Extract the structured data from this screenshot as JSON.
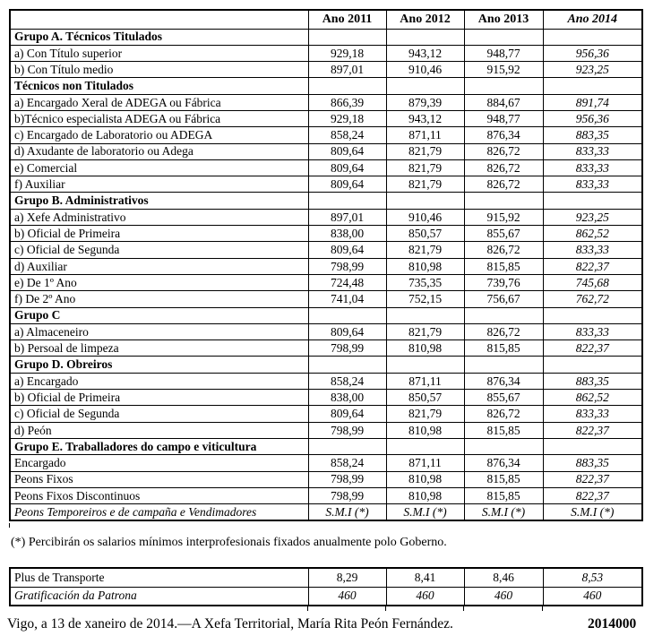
{
  "colors": {
    "text": "#000000",
    "border": "#000000",
    "background": "#ffffff"
  },
  "salary_table": {
    "columns": [
      "",
      "Ano 2011",
      "Ano 2012",
      "Ano 2013",
      "Ano 2014"
    ],
    "rows": [
      {
        "label": "Grupo A. Técnicos Titulados",
        "style": "group",
        "values": [
          "",
          "",
          "",
          ""
        ]
      },
      {
        "label": "a) Con Título superior",
        "style": "normal",
        "values": [
          "929,18",
          "943,12",
          "948,77",
          "956,36"
        ]
      },
      {
        "label": "b) Con Título medio",
        "style": "normal",
        "values": [
          "897,01",
          "910,46",
          "915,92",
          "923,25"
        ]
      },
      {
        "label": "Técnicos non Titulados",
        "style": "group",
        "values": [
          "",
          "",
          "",
          ""
        ]
      },
      {
        "label": "a) Encargado Xeral de ADEGA ou Fábrica",
        "style": "normal",
        "values": [
          "866,39",
          "879,39",
          "884,67",
          "891,74"
        ]
      },
      {
        "label": "b)Técnico especialista ADEGA ou Fábrica",
        "style": "normal",
        "values": [
          "929,18",
          "943,12",
          "948,77",
          "956,36"
        ]
      },
      {
        "label": "c) Encargado de Laboratorio ou ADEGA",
        "style": "normal",
        "values": [
          "858,24",
          "871,11",
          "876,34",
          "883,35"
        ]
      },
      {
        "label": "d) Axudante de laboratorio ou Adega",
        "style": "normal",
        "values": [
          "809,64",
          "821,79",
          "826,72",
          "833,33"
        ]
      },
      {
        "label": "e) Comercial",
        "style": "normal",
        "values": [
          "809,64",
          "821,79",
          "826,72",
          "833,33"
        ]
      },
      {
        "label": "f) Auxiliar",
        "style": "normal",
        "values": [
          "809,64",
          "821,79",
          "826,72",
          "833,33"
        ]
      },
      {
        "label": "Grupo B. Administrativos",
        "style": "group",
        "values": [
          "",
          "",
          "",
          ""
        ]
      },
      {
        "label": "a) Xefe Administrativo",
        "style": "normal",
        "values": [
          "897,01",
          "910,46",
          "915,92",
          "923,25"
        ]
      },
      {
        "label": "b) Oficial de Primeira",
        "style": "normal",
        "values": [
          "838,00",
          "850,57",
          "855,67",
          "862,52"
        ]
      },
      {
        "label": "c) Oficial de Segunda",
        "style": "normal",
        "values": [
          "809,64",
          "821,79",
          "826,72",
          "833,33"
        ]
      },
      {
        "label": "d) Auxiliar",
        "style": "normal",
        "values": [
          "798,99",
          "810,98",
          "815,85",
          "822,37"
        ]
      },
      {
        "label": "e) De 1º Ano",
        "style": "normal",
        "values": [
          "724,48",
          "735,35",
          "739,76",
          "745,68"
        ]
      },
      {
        "label": "f) De 2º Ano",
        "style": "normal",
        "values": [
          "741,04",
          "752,15",
          "756,67",
          "762,72"
        ]
      },
      {
        "label": "Grupo C",
        "style": "group",
        "values": [
          "",
          "",
          "",
          ""
        ]
      },
      {
        "label": "a) Almaceneiro",
        "style": "normal",
        "values": [
          "809,64",
          "821,79",
          "826,72",
          "833,33"
        ]
      },
      {
        "label": "b) Persoal de limpeza",
        "style": "normal",
        "values": [
          "798,99",
          "810,98",
          "815,85",
          "822,37"
        ]
      },
      {
        "label": "Grupo D. Obreiros",
        "style": "group",
        "values": [
          "",
          "",
          "",
          ""
        ]
      },
      {
        "label": "a) Encargado",
        "style": "normal",
        "values": [
          "858,24",
          "871,11",
          "876,34",
          "883,35"
        ]
      },
      {
        "label": "b) Oficial de Primeira",
        "style": "normal",
        "values": [
          "838,00",
          "850,57",
          "855,67",
          "862,52"
        ]
      },
      {
        "label": "c) Oficial de Segunda",
        "style": "normal",
        "values": [
          "809,64",
          "821,79",
          "826,72",
          "833,33"
        ]
      },
      {
        "label": "d) Peón",
        "style": "normal",
        "values": [
          "798,99",
          "810,98",
          "815,85",
          "822,37"
        ]
      },
      {
        "label": "Grupo E. Traballadores do campo e viticultura",
        "style": "group",
        "values": [
          "",
          "",
          "",
          ""
        ]
      },
      {
        "label": "Encargado",
        "style": "normal",
        "values": [
          "858,24",
          "871,11",
          "876,34",
          "883,35"
        ]
      },
      {
        "label": "Peons Fixos",
        "style": "normal",
        "values": [
          "798,99",
          "810,98",
          "815,85",
          "822,37"
        ]
      },
      {
        "label": "Peons Fixos Discontinuos",
        "style": "normal",
        "values": [
          "798,99",
          "810,98",
          "815,85",
          "822,37"
        ]
      },
      {
        "label": "Peons Temporeiros e de campaña e Vendimadores",
        "style": "italic",
        "values": [
          "S.M.I (*)",
          "S.M.I (*)",
          "S.M.I (*)",
          "S.M.I (*)"
        ]
      }
    ]
  },
  "note": "(*) Percibirán os salarios mínimos interprofesionais fixados anualmente polo Goberno.",
  "extras_table": {
    "rows": [
      {
        "label": "Plus de Transporte",
        "style": "normal",
        "values": [
          "8,29",
          "8,41",
          "8,46",
          "8,53"
        ]
      },
      {
        "label": "Gratificación da Patrona",
        "style": "italic",
        "values": [
          "460",
          "460",
          "460",
          "460"
        ]
      }
    ]
  },
  "footer": {
    "signature": "Vigo, a 13 de xaneiro de 2014.—A Xefa Territorial, María Rita Peón Fernández.",
    "document_number": "2014000"
  }
}
